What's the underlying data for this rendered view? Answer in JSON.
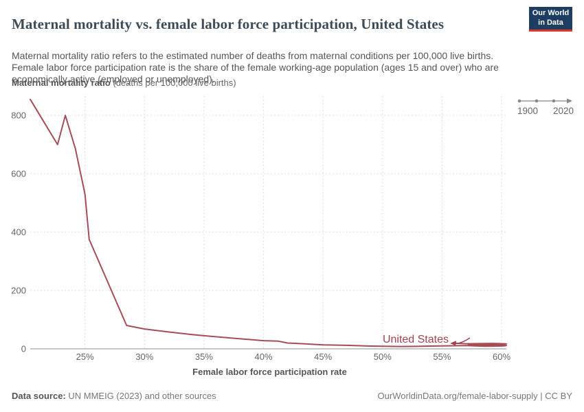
{
  "header": {
    "title": "Maternal mortality vs. female labor force participation, United States",
    "subtitle": "Maternal mortality ratio refers to the estimated number of deaths from maternal conditions per 100,000 live births. Female labor force participation rate is the share of the female working-age population (ages 15 and over) who are economically active (employed or unemployed).",
    "logo": {
      "line1": "Our World",
      "line2": "in Data",
      "bg_color": "#1d3d63",
      "accent_color": "#e0372b"
    }
  },
  "timeline": {
    "start_label": "1900",
    "end_label": "2020"
  },
  "chart_data": {
    "type": "line",
    "title": "Maternal mortality vs. female labor force participation, United States",
    "ylabel_bold": "Maternal mortality ratio",
    "ylabel_normal": " (deaths per 100,000 live births)",
    "xlabel": "Female labor force participation rate",
    "xlim": [
      20.4,
      60.4
    ],
    "ylim": [
      0,
      866
    ],
    "grid": "dashed",
    "legend_position": "inline-entity-label",
    "x_ticks": [
      {
        "value": 25,
        "label": "25%"
      },
      {
        "value": 30,
        "label": "30%"
      },
      {
        "value": 35,
        "label": "35%"
      },
      {
        "value": 40,
        "label": "40%"
      },
      {
        "value": 45,
        "label": "45%"
      },
      {
        "value": 50,
        "label": "50%"
      },
      {
        "value": 55,
        "label": "55%"
      },
      {
        "value": 60,
        "label": "60%"
      }
    ],
    "y_ticks": [
      {
        "value": 0,
        "label": "0"
      },
      {
        "value": 200,
        "label": "200"
      },
      {
        "value": 400,
        "label": "400"
      },
      {
        "value": 600,
        "label": "600"
      },
      {
        "value": 800,
        "label": "800"
      }
    ],
    "series": [
      {
        "name": "United States",
        "color": "#a64c56",
        "label_color": "#a2424e",
        "points": [
          [
            20.4,
            855
          ],
          [
            22.7,
            700
          ],
          [
            23.35,
            800
          ],
          [
            24.2,
            685
          ],
          [
            25.0,
            530
          ],
          [
            25.35,
            375
          ],
          [
            28.5,
            80
          ],
          [
            30,
            68
          ],
          [
            32,
            58
          ],
          [
            34,
            49
          ],
          [
            35,
            45
          ],
          [
            37,
            38
          ],
          [
            38.5,
            33
          ],
          [
            40,
            28
          ],
          [
            41.2,
            26.5
          ],
          [
            42,
            20
          ],
          [
            43.5,
            17
          ],
          [
            45,
            13.5
          ],
          [
            47,
            12
          ],
          [
            49,
            9.5
          ],
          [
            50,
            9
          ],
          [
            51.5,
            8
          ],
          [
            53,
            8.5
          ],
          [
            54,
            9.5
          ],
          [
            55,
            10
          ],
          [
            56,
            10.5
          ],
          [
            57,
            11
          ],
          [
            57.8,
            10
          ],
          [
            58.6,
            9
          ],
          [
            59.5,
            9.5
          ],
          [
            60.2,
            10
          ],
          [
            60.4,
            11.5
          ],
          [
            59.6,
            13
          ],
          [
            58.4,
            13.5
          ],
          [
            57.6,
            12.5
          ],
          [
            57.2,
            14
          ],
          [
            58,
            15.5
          ],
          [
            59.2,
            16
          ],
          [
            60.1,
            15.5
          ],
          [
            60.4,
            17
          ],
          [
            59.3,
            18.5
          ],
          [
            58,
            18
          ],
          [
            57,
            17.5
          ],
          [
            56.2,
            19
          ]
        ]
      }
    ],
    "entity_label": "United States"
  },
  "footer": {
    "source_label": "Data source:",
    "source_text": " UN MMEIG (2023) and other sources",
    "link_text": "OurWorldinData.org/female-labor-supply | CC BY"
  }
}
